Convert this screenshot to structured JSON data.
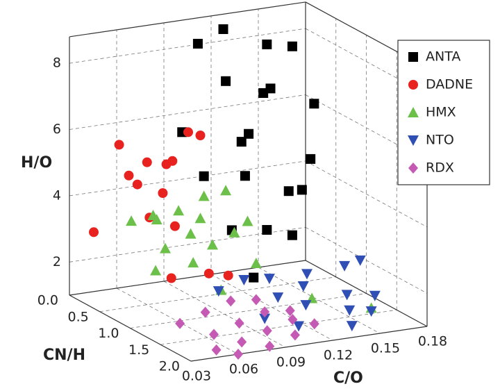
{
  "chart_data": {
    "type": "scatter3d",
    "x_label": "C/O",
    "y_label": "CN/H",
    "z_label": "H/O",
    "xlim": [
      0.03,
      0.18
    ],
    "ylim": [
      0,
      2
    ],
    "zlim": [
      1,
      8.8
    ],
    "xticks": [
      0.03,
      0.06,
      0.09,
      0.12,
      0.15,
      0.18
    ],
    "yticks": [
      {
        "value": 0,
        "label": "0.0"
      },
      0.5,
      {
        "value": 1,
        "label": "1.0"
      },
      1.5,
      {
        "value": 2,
        "label": "2.0"
      }
    ],
    "zticks": [
      2,
      4,
      6,
      8
    ],
    "grid": true,
    "legend": "upper right",
    "series": [
      {
        "name": "ANTA",
        "color": "#000000",
        "marker": "square",
        "x": [
          0.1,
          0.12,
          0.14,
          0.16,
          0.11,
          0.13,
          0.15,
          0.17,
          0.09,
          0.12,
          0.14,
          0.16,
          0.1,
          0.13,
          0.15,
          0.17,
          0.11,
          0.14,
          0.16,
          0.12
        ],
        "y": [
          0.3,
          0.2,
          0.4,
          0.3,
          0.5,
          0.6,
          0.2,
          0.4,
          0.3,
          0.5,
          0.1,
          0.6,
          0.4,
          0.3,
          0.5,
          0.2,
          0.6,
          0.4,
          0.3,
          0.7
        ],
        "z": [
          8.4,
          8.6,
          8.2,
          7.9,
          7.4,
          7.0,
          6.6,
          6.2,
          5.8,
          5.5,
          5.2,
          4.8,
          4.5,
          4.2,
          3.8,
          3.4,
          3.0,
          2.6,
          2.2,
          1.6
        ]
      },
      {
        "name": "DADNE",
        "color": "#e8221f",
        "marker": "circle",
        "x": [
          0.03,
          0.05,
          0.06,
          0.08,
          0.05,
          0.06,
          0.08,
          0.07,
          0.09,
          0.05,
          0.07,
          0.09,
          0.06,
          0.08,
          0.1
        ],
        "y": [
          0.4,
          0.3,
          0.5,
          0.4,
          0.6,
          0.2,
          0.3,
          0.5,
          0.4,
          0.8,
          0.7,
          0.6,
          0.9,
          1.0,
          0.8
        ],
        "z": [
          3.3,
          5.7,
          5.3,
          5.1,
          4.8,
          4.6,
          4.9,
          4.3,
          5.9,
          4.0,
          3.5,
          6.0,
          2.2,
          2.3,
          1.9
        ]
      },
      {
        "name": "HMX",
        "color": "#6cc04a",
        "marker": "triangle",
        "x": [
          0.05,
          0.06,
          0.07,
          0.08,
          0.09,
          0.1,
          0.11,
          0.06,
          0.08,
          0.1,
          0.07,
          0.09,
          0.12,
          0.05,
          0.08,
          0.11,
          0.13,
          0.16
        ],
        "y": [
          0.5,
          0.6,
          0.4,
          0.5,
          0.6,
          0.4,
          0.5,
          0.8,
          0.7,
          0.9,
          1.0,
          0.8,
          0.6,
          0.9,
          1.2,
          1.0,
          1.4,
          1.6
        ],
        "z": [
          3.6,
          3.8,
          3.4,
          3.7,
          3.5,
          3.9,
          4.1,
          3.0,
          3.2,
          3.3,
          2.7,
          2.9,
          3.2,
          2.5,
          2.0,
          2.4,
          1.6,
          1.3
        ]
      },
      {
        "name": "NTO",
        "color": "#2f4fb5",
        "marker": "triangle-down",
        "x": [
          0.09,
          0.11,
          0.13,
          0.15,
          0.17,
          0.12,
          0.14,
          0.16,
          0.18,
          0.1,
          0.13,
          0.15,
          0.17,
          0.11,
          0.14,
          0.16
        ],
        "y": [
          0.9,
          0.8,
          0.7,
          0.8,
          0.9,
          1.1,
          1.0,
          1.2,
          0.9,
          1.4,
          1.3,
          1.5,
          1.4,
          1.7,
          1.8,
          1.6
        ],
        "z": [
          1.6,
          1.7,
          1.5,
          1.6,
          1.8,
          1.4,
          1.5,
          1.3,
          1.9,
          1.2,
          1.3,
          1.2,
          1.4,
          1.2,
          1.1,
          1.2
        ]
      },
      {
        "name": "RDX",
        "color": "#c45ab3",
        "marker": "diamond",
        "x": [
          0.05,
          0.07,
          0.09,
          0.11,
          0.06,
          0.08,
          0.1,
          0.12,
          0.07,
          0.09,
          0.11,
          0.05,
          0.08,
          0.1,
          0.06,
          0.12
        ],
        "y": [
          1.3,
          1.2,
          1.1,
          1.0,
          1.6,
          1.5,
          1.4,
          1.3,
          1.8,
          1.7,
          1.6,
          1.9,
          2.0,
          1.9,
          2.0,
          1.7
        ],
        "z": [
          1.3,
          1.4,
          1.5,
          1.3,
          1.2,
          1.3,
          1.4,
          1.2,
          1.1,
          1.2,
          1.3,
          1.1,
          1.1,
          1.2,
          1.0,
          1.2
        ]
      }
    ]
  }
}
